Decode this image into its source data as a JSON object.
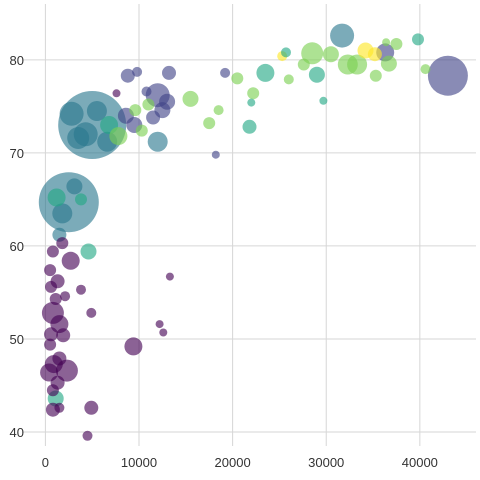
{
  "chart_data": {
    "type": "scatter",
    "title": "",
    "xlabel": "",
    "ylabel": "",
    "xlim": [
      -2500,
      46000
    ],
    "ylim": [
      38.5,
      86
    ],
    "x_ticks": [
      0,
      10000,
      20000,
      30000,
      40000
    ],
    "y_ticks": [
      40,
      50,
      60,
      70,
      80
    ],
    "grid": true,
    "legend": "none",
    "colors": {
      "purple": "#440154",
      "indigo": "#414487",
      "teal": "#2a788e",
      "green": "#22a884",
      "lightgreen": "#7ad151",
      "yellow": "#fde725"
    },
    "points": [
      {
        "x": 2500,
        "y": 64.7,
        "r": 30,
        "c": "teal"
      },
      {
        "x": 5000,
        "y": 73.0,
        "r": 34,
        "c": "teal"
      },
      {
        "x": 43000,
        "y": 78.3,
        "r": 20,
        "c": "indigo"
      },
      {
        "x": 31700,
        "y": 82.6,
        "r": 12,
        "c": "teal"
      },
      {
        "x": 12000,
        "y": 76.2,
        "r": 12,
        "c": "indigo"
      },
      {
        "x": 12000,
        "y": 71.2,
        "r": 10,
        "c": "teal"
      },
      {
        "x": 2800,
        "y": 74.2,
        "r": 12,
        "c": "teal"
      },
      {
        "x": 3500,
        "y": 71.6,
        "r": 11,
        "c": "teal"
      },
      {
        "x": 4300,
        "y": 72.0,
        "r": 12,
        "c": "teal"
      },
      {
        "x": 5500,
        "y": 74.5,
        "r": 10,
        "c": "teal"
      },
      {
        "x": 6800,
        "y": 73.0,
        "r": 9,
        "c": "green"
      },
      {
        "x": 6600,
        "y": 71.2,
        "r": 10,
        "c": "teal"
      },
      {
        "x": 7800,
        "y": 71.8,
        "r": 9,
        "c": "lightgreen"
      },
      {
        "x": 8600,
        "y": 74.0,
        "r": 8,
        "c": "indigo"
      },
      {
        "x": 9500,
        "y": 73.0,
        "r": 8,
        "c": "indigo"
      },
      {
        "x": 9600,
        "y": 74.6,
        "r": 6,
        "c": "lightgreen"
      },
      {
        "x": 10300,
        "y": 72.4,
        "r": 6,
        "c": "lightgreen"
      },
      {
        "x": 11000,
        "y": 75.2,
        "r": 6,
        "c": "lightgreen"
      },
      {
        "x": 11500,
        "y": 73.8,
        "r": 7,
        "c": "indigo"
      },
      {
        "x": 12500,
        "y": 74.6,
        "r": 8,
        "c": "indigo"
      },
      {
        "x": 13000,
        "y": 75.5,
        "r": 8,
        "c": "indigo"
      },
      {
        "x": 13200,
        "y": 78.6,
        "r": 7,
        "c": "indigo"
      },
      {
        "x": 8800,
        "y": 78.3,
        "r": 7,
        "c": "indigo"
      },
      {
        "x": 9800,
        "y": 78.7,
        "r": 5,
        "c": "indigo"
      },
      {
        "x": 7600,
        "y": 76.4,
        "r": 4,
        "c": "purple"
      },
      {
        "x": 10800,
        "y": 76.6,
        "r": 5,
        "c": "indigo"
      },
      {
        "x": 15500,
        "y": 75.8,
        "r": 8,
        "c": "lightgreen"
      },
      {
        "x": 17500,
        "y": 73.2,
        "r": 6,
        "c": "lightgreen"
      },
      {
        "x": 18500,
        "y": 74.6,
        "r": 5,
        "c": "lightgreen"
      },
      {
        "x": 19200,
        "y": 78.6,
        "r": 5,
        "c": "indigo"
      },
      {
        "x": 20500,
        "y": 78.0,
        "r": 6,
        "c": "lightgreen"
      },
      {
        "x": 22200,
        "y": 76.4,
        "r": 6,
        "c": "lightgreen"
      },
      {
        "x": 22000,
        "y": 75.4,
        "r": 4,
        "c": "green"
      },
      {
        "x": 21800,
        "y": 72.8,
        "r": 7,
        "c": "green"
      },
      {
        "x": 23500,
        "y": 78.6,
        "r": 9,
        "c": "green"
      },
      {
        "x": 25300,
        "y": 80.4,
        "r": 5,
        "c": "yellow"
      },
      {
        "x": 25700,
        "y": 80.8,
        "r": 5,
        "c": "green"
      },
      {
        "x": 26000,
        "y": 77.9,
        "r": 5,
        "c": "lightgreen"
      },
      {
        "x": 27600,
        "y": 79.5,
        "r": 6,
        "c": "lightgreen"
      },
      {
        "x": 28500,
        "y": 80.7,
        "r": 11,
        "c": "lightgreen"
      },
      {
        "x": 29000,
        "y": 78.4,
        "r": 8,
        "c": "green"
      },
      {
        "x": 29700,
        "y": 75.6,
        "r": 4,
        "c": "green"
      },
      {
        "x": 30500,
        "y": 80.6,
        "r": 8,
        "c": "lightgreen"
      },
      {
        "x": 32300,
        "y": 79.5,
        "r": 10,
        "c": "lightgreen"
      },
      {
        "x": 33300,
        "y": 79.5,
        "r": 10,
        "c": "lightgreen"
      },
      {
        "x": 34200,
        "y": 81.0,
        "r": 8,
        "c": "yellow"
      },
      {
        "x": 35200,
        "y": 80.6,
        "r": 7,
        "c": "yellow"
      },
      {
        "x": 35300,
        "y": 78.3,
        "r": 6,
        "c": "lightgreen"
      },
      {
        "x": 36300,
        "y": 80.8,
        "r": 9,
        "c": "indigo"
      },
      {
        "x": 36700,
        "y": 79.6,
        "r": 8,
        "c": "lightgreen"
      },
      {
        "x": 37500,
        "y": 81.7,
        "r": 6,
        "c": "lightgreen"
      },
      {
        "x": 36400,
        "y": 81.9,
        "r": 4,
        "c": "lightgreen"
      },
      {
        "x": 39800,
        "y": 82.2,
        "r": 6,
        "c": "green"
      },
      {
        "x": 40600,
        "y": 79.0,
        "r": 5,
        "c": "lightgreen"
      },
      {
        "x": 18200,
        "y": 69.8,
        "r": 4,
        "c": "indigo"
      },
      {
        "x": 1800,
        "y": 63.5,
        "r": 10,
        "c": "teal"
      },
      {
        "x": 1200,
        "y": 65.2,
        "r": 9,
        "c": "green"
      },
      {
        "x": 1500,
        "y": 61.2,
        "r": 7,
        "c": "teal"
      },
      {
        "x": 3100,
        "y": 66.4,
        "r": 8,
        "c": "teal"
      },
      {
        "x": 4600,
        "y": 59.4,
        "r": 8,
        "c": "green"
      },
      {
        "x": 3800,
        "y": 65.0,
        "r": 6,
        "c": "green"
      },
      {
        "x": 1800,
        "y": 60.3,
        "r": 6,
        "c": "purple"
      },
      {
        "x": 800,
        "y": 59.4,
        "r": 6,
        "c": "purple"
      },
      {
        "x": 2700,
        "y": 58.4,
        "r": 9,
        "c": "purple"
      },
      {
        "x": 500,
        "y": 57.4,
        "r": 6,
        "c": "purple"
      },
      {
        "x": 1300,
        "y": 56.2,
        "r": 7,
        "c": "purple"
      },
      {
        "x": 600,
        "y": 55.6,
        "r": 6,
        "c": "purple"
      },
      {
        "x": 3800,
        "y": 55.3,
        "r": 5,
        "c": "purple"
      },
      {
        "x": 1100,
        "y": 54.3,
        "r": 6,
        "c": "purple"
      },
      {
        "x": 2100,
        "y": 54.6,
        "r": 5,
        "c": "purple"
      },
      {
        "x": 800,
        "y": 52.8,
        "r": 11,
        "c": "purple"
      },
      {
        "x": 1500,
        "y": 51.6,
        "r": 9,
        "c": "purple"
      },
      {
        "x": 600,
        "y": 50.5,
        "r": 7,
        "c": "purple"
      },
      {
        "x": 1900,
        "y": 50.4,
        "r": 7,
        "c": "purple"
      },
      {
        "x": 4900,
        "y": 52.8,
        "r": 5,
        "c": "purple"
      },
      {
        "x": 500,
        "y": 49.4,
        "r": 6,
        "c": "purple"
      },
      {
        "x": 12200,
        "y": 51.6,
        "r": 4,
        "c": "purple"
      },
      {
        "x": 12600,
        "y": 50.7,
        "r": 4,
        "c": "purple"
      },
      {
        "x": 13300,
        "y": 56.7,
        "r": 4,
        "c": "purple"
      },
      {
        "x": 9400,
        "y": 49.2,
        "r": 9,
        "c": "purple"
      },
      {
        "x": 1500,
        "y": 47.9,
        "r": 7,
        "c": "purple"
      },
      {
        "x": 900,
        "y": 47.3,
        "r": 9,
        "c": "purple"
      },
      {
        "x": 2300,
        "y": 46.6,
        "r": 11,
        "c": "purple"
      },
      {
        "x": 400,
        "y": 46.4,
        "r": 9,
        "c": "purple"
      },
      {
        "x": 1300,
        "y": 45.3,
        "r": 7,
        "c": "purple"
      },
      {
        "x": 800,
        "y": 44.5,
        "r": 6,
        "c": "purple"
      },
      {
        "x": 1100,
        "y": 43.6,
        "r": 8,
        "c": "green"
      },
      {
        "x": 800,
        "y": 42.4,
        "r": 7,
        "c": "purple"
      },
      {
        "x": 1500,
        "y": 42.6,
        "r": 5,
        "c": "purple"
      },
      {
        "x": 4900,
        "y": 42.6,
        "r": 7,
        "c": "purple"
      },
      {
        "x": 4500,
        "y": 39.6,
        "r": 5,
        "c": "purple"
      }
    ]
  }
}
